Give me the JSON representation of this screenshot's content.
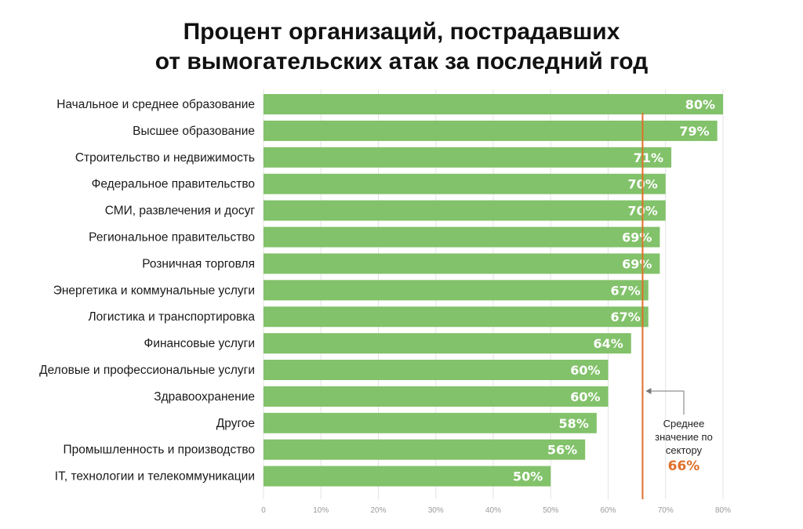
{
  "chart_data": {
    "type": "bar",
    "orientation": "horizontal",
    "title_lines": [
      "Процент организаций, пострадавших",
      "от вымогательских атак за последний год"
    ],
    "categories": [
      "Начальное и среднее образование",
      "Высшее образование",
      "Строительство и недвижимость",
      "Федеральное правительство",
      "СМИ, развлечения и досуг",
      "Региональное правительство",
      "Розничная торговля",
      "Энергетика и коммунальные услуги",
      "Логистика и транспортировка",
      "Финансовые услуги",
      "Деловые и профессиональные услуги",
      "Здравоохранение",
      "Другое",
      "Промышленность и производство",
      "IT, технологии и телекоммуникации"
    ],
    "values": [
      80,
      79,
      71,
      70,
      70,
      69,
      69,
      67,
      67,
      64,
      60,
      60,
      58,
      56,
      50
    ],
    "value_labels": [
      "80%",
      "79%",
      "71%",
      "70%",
      "70%",
      "69%",
      "69%",
      "67%",
      "67%",
      "64%",
      "60%",
      "60%",
      "58%",
      "56%",
      "50%"
    ],
    "xlim": [
      0,
      80
    ],
    "xticks": [
      0,
      10,
      20,
      30,
      40,
      50,
      60,
      70,
      80
    ],
    "xtick_labels": [
      "0",
      "10%",
      "20%",
      "30%",
      "40%",
      "50%",
      "60%",
      "70%",
      "80%"
    ],
    "grid": true,
    "reference_line": {
      "value": 66,
      "label_lines": [
        "Среднее",
        "значение по",
        "сектору"
      ],
      "value_label": "66%"
    },
    "colors": {
      "bar": "#82c26a",
      "grid": "#e3e3e3",
      "reference_line": "#e0702a",
      "reference_value": "#e0702a",
      "arrow": "#777777"
    }
  }
}
